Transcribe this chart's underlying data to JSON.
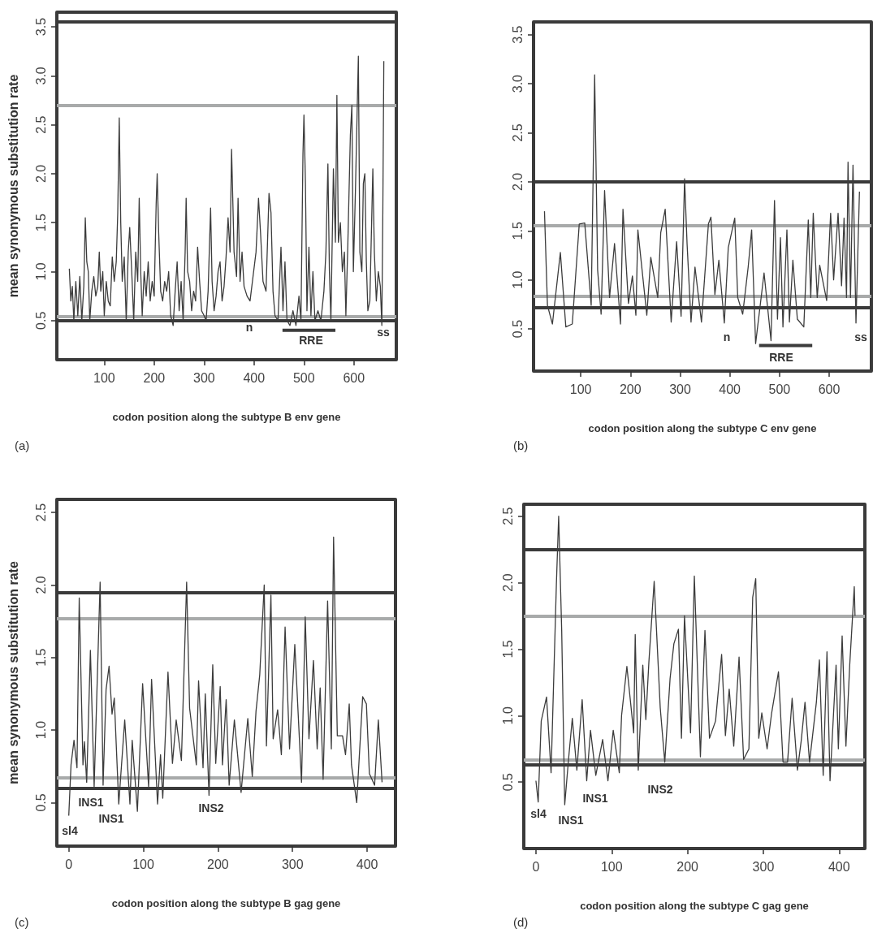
{
  "chart_data": [
    {
      "type": "line",
      "xlabel": "codon position along the subtype B env gene",
      "ylabel": "mean synonymous substitution rate",
      "xlim": [
        5,
        685
      ],
      "ylim": [
        0.1,
        3.65
      ],
      "xticks": [
        100,
        200,
        300,
        400,
        500,
        600
      ],
      "yticks": [
        0.5,
        {
          "value": 1,
          "label": "1.0"
        },
        1.5,
        {
          "value": 2,
          "label": "2.0"
        },
        2.5,
        {
          "value": 3,
          "label": "3.0"
        },
        3.5
      ],
      "marker": "none",
      "line_style": "solid",
      "series": [
        {
          "color": "#3c3c3c",
          "x": [
            30,
            33,
            36,
            39,
            43,
            47,
            51,
            55,
            59,
            62,
            65,
            68,
            71,
            75,
            79,
            83,
            87,
            90,
            93,
            97,
            100,
            104,
            108,
            112,
            116,
            120,
            124,
            127,
            130,
            133,
            136,
            140,
            144,
            148,
            151,
            155,
            159,
            163,
            167,
            170,
            173,
            176,
            180,
            184,
            188,
            192,
            196,
            200,
            204,
            206,
            209,
            213,
            217,
            221,
            225,
            229,
            233,
            238,
            242,
            246,
            250,
            254,
            258,
            262,
            264,
            267,
            271,
            275,
            279,
            283,
            287,
            291,
            295,
            300,
            304,
            308,
            313,
            316,
            320,
            324,
            328,
            332,
            336,
            340,
            344,
            348,
            352,
            355,
            360,
            365,
            368,
            372,
            376,
            380,
            386,
            392,
            398,
            404,
            409,
            413,
            418,
            424,
            430,
            434,
            438,
            442,
            448,
            454,
            458,
            462,
            466,
            472,
            478,
            484,
            490,
            494,
            498,
            500,
            503,
            506,
            510,
            514,
            518,
            522,
            528,
            534,
            540,
            544,
            548,
            551,
            554,
            559,
            563,
            566,
            569,
            573,
            577,
            581,
            584,
            588,
            593,
            596,
            599,
            603,
            609,
            612,
            616,
            619,
            622,
            625,
            628,
            632,
            638,
            641,
            645,
            649,
            653,
            656,
            658,
            660
          ],
          "values": [
            1.03,
            0.7,
            0.85,
            0.5,
            0.9,
            0.55,
            0.95,
            0.5,
            0.85,
            1.55,
            1.1,
            1.0,
            0.5,
            0.8,
            0.95,
            0.75,
            0.85,
            1.2,
            0.8,
            1.0,
            0.55,
            0.9,
            0.7,
            0.65,
            1.15,
            0.9,
            1.1,
            1.6,
            2.57,
            1.5,
            0.9,
            1.15,
            0.5,
            1.2,
            1.45,
            1.0,
            0.5,
            1.2,
            0.9,
            1.75,
            1.0,
            0.55,
            1.0,
            0.75,
            1.1,
            0.7,
            0.9,
            0.75,
            1.7,
            2.0,
            1.4,
            0.8,
            0.7,
            0.9,
            0.8,
            1.0,
            0.55,
            0.45,
            0.8,
            1.1,
            0.6,
            0.9,
            0.5,
            1.2,
            1.75,
            1.0,
            0.9,
            0.6,
            0.8,
            0.7,
            1.25,
            0.9,
            0.6,
            0.55,
            0.5,
            0.8,
            1.65,
            0.9,
            0.6,
            0.75,
            1.0,
            1.1,
            0.7,
            0.85,
            1.15,
            1.55,
            1.2,
            2.25,
            1.2,
            0.95,
            1.75,
            0.9,
            1.2,
            0.85,
            0.75,
            0.7,
            0.95,
            1.2,
            1.75,
            1.4,
            0.9,
            0.8,
            1.8,
            1.6,
            0.8,
            0.55,
            0.5,
            1.25,
            0.6,
            1.1,
            0.5,
            0.45,
            0.6,
            0.45,
            0.75,
            0.5,
            2.2,
            2.6,
            1.9,
            0.6,
            1.25,
            0.55,
            1.0,
            0.5,
            0.6,
            0.5,
            0.8,
            1.2,
            2.1,
            1.0,
            0.5,
            2.05,
            1.3,
            2.8,
            1.3,
            1.5,
            1.0,
            1.2,
            0.55,
            1.3,
            2.4,
            2.7,
            1.0,
            1.8,
            3.2,
            1.2,
            1.0,
            1.9,
            2.0,
            1.1,
            0.6,
            0.7,
            2.05,
            1.2,
            0.7,
            1.0,
            0.85,
            0.45,
            1.6,
            3.15
          ]
        },
        {
          "color": "#3c3c3c",
          "x": [
            457,
            563
          ],
          "values": [
            0.4,
            0.4
          ]
        }
      ],
      "ref_lines": [
        {
          "axis": "y",
          "value": 3.55,
          "color": "#3a3a3a"
        },
        {
          "axis": "y",
          "value": 2.7,
          "color": "#a8aaaa"
        },
        {
          "axis": "y",
          "value": 0.54,
          "color": "#a8aaaa"
        },
        {
          "axis": "y",
          "value": 0.5,
          "color": "#3a3a3a"
        }
      ],
      "annotations": [
        "n",
        "RRE",
        "ss",
        "(a)"
      ]
    },
    {
      "type": "line",
      "xlabel": "codon position along the subtype C env gene",
      "xlim": [
        5,
        685
      ],
      "ylim": [
        0.07,
        3.63
      ],
      "xticks": [
        100,
        200,
        300,
        400,
        500,
        600
      ],
      "yticks": [
        0.5,
        {
          "value": 1,
          "label": "1.0"
        },
        1.5,
        {
          "value": 2,
          "label": "2.0"
        },
        2.5,
        {
          "value": 3,
          "label": "3.0"
        },
        3.5
      ],
      "marker": "none",
      "line_style": "solid",
      "series": [
        {
          "color": "#3c3c3c",
          "x": [
            27,
            33,
            43,
            59,
            70,
            83,
            97,
            108,
            121,
            128,
            134,
            141,
            148,
            158,
            168,
            180,
            185,
            196,
            204,
            211,
            215,
            233,
            241,
            255,
            261,
            270,
            282,
            293,
            302,
            309,
            314,
            322,
            330,
            343,
            357,
            362,
            370,
            378,
            389,
            397,
            410,
            416,
            426,
            437,
            444,
            452,
            469,
            483,
            490,
            496,
            502,
            507,
            515,
            520,
            527,
            536,
            549,
            558,
            563,
            568,
            576,
            581,
            595,
            603,
            609,
            618,
            625,
            630,
            635,
            638,
            643,
            648,
            654,
            661
          ],
          "values": [
            1.7,
            0.74,
            0.55,
            1.28,
            0.52,
            0.55,
            1.57,
            1.58,
            0.74,
            3.09,
            1.1,
            0.65,
            1.91,
            0.82,
            1.37,
            0.55,
            1.72,
            0.76,
            1.04,
            0.64,
            1.51,
            0.64,
            1.23,
            0.82,
            1.48,
            1.72,
            0.57,
            1.39,
            0.63,
            2.03,
            1.37,
            0.57,
            1.13,
            0.57,
            1.57,
            1.64,
            0.85,
            1.2,
            0.56,
            1.33,
            1.63,
            0.82,
            0.65,
            1.13,
            1.51,
            0.35,
            1.07,
            0.38,
            1.81,
            0.6,
            1.43,
            0.52,
            1.51,
            0.57,
            1.2,
            0.6,
            0.52,
            1.61,
            0.82,
            1.68,
            0.82,
            1.15,
            0.79,
            1.68,
            1.0,
            1.68,
            0.94,
            1.63,
            0.82,
            2.2,
            0.82,
            2.17,
            0.56,
            1.9
          ]
        },
        {
          "color": "#3c3c3c",
          "x": [
            459,
            566
          ],
          "values": [
            0.33,
            0.33
          ]
        }
      ],
      "ref_lines": [
        {
          "axis": "y",
          "value": 2.0,
          "color": "#3a3a3a"
        },
        {
          "axis": "y",
          "value": 1.55,
          "color": "#a8aaaa"
        },
        {
          "axis": "y",
          "value": 0.83,
          "color": "#a8aaaa"
        },
        {
          "axis": "y",
          "value": 0.72,
          "color": "#3a3a3a"
        }
      ],
      "annotations": [
        "n",
        "RRE",
        "ss",
        "(b)"
      ]
    },
    {
      "type": "line",
      "xlabel": "codon position along the subtype B gag gene",
      "ylabel": "mean synonymous substitution rate",
      "xlim": [
        -16,
        438
      ],
      "ylim": [
        0.2,
        2.59
      ],
      "xticks": [
        0,
        100,
        200,
        300,
        400
      ],
      "yticks": [
        0.5,
        {
          "value": 1,
          "label": "1.0"
        },
        1.5,
        {
          "value": 2,
          "label": "2.0"
        },
        2.5
      ],
      "marker": "none",
      "line_style": "solid",
      "series": [
        {
          "color": "#3c3c3c",
          "x": [
            0,
            3,
            7,
            11,
            14,
            19,
            21,
            24,
            29,
            34,
            42,
            46,
            50,
            54,
            58,
            61,
            67,
            75,
            82,
            85,
            92,
            99,
            107,
            111,
            119,
            123,
            126,
            133,
            139,
            144,
            151,
            158,
            162,
            171,
            174,
            180,
            183,
            188,
            193,
            197,
            203,
            206,
            211,
            215,
            222,
            231,
            240,
            246,
            251,
            256,
            262,
            265,
            271,
            274,
            280,
            285,
            290,
            296,
            303,
            312,
            317,
            322,
            328,
            333,
            337,
            341,
            347,
            352,
            355,
            360,
            367,
            371,
            376,
            379,
            386,
            394,
            399,
            403,
            410,
            415,
            420
          ],
          "values": [
            0.41,
            0.76,
            0.93,
            0.74,
            1.91,
            0.76,
            0.92,
            0.64,
            1.55,
            0.61,
            2.02,
            0.62,
            1.28,
            1.44,
            1.11,
            1.22,
            0.49,
            1.07,
            0.49,
            0.93,
            0.44,
            1.32,
            0.61,
            1.35,
            0.49,
            0.83,
            0.53,
            1.4,
            0.77,
            1.07,
            0.79,
            2.02,
            1.15,
            0.76,
            1.34,
            0.74,
            1.25,
            0.55,
            1.45,
            0.77,
            1.3,
            0.76,
            1.21,
            0.62,
            1.07,
            0.57,
            1.08,
            0.68,
            1.13,
            1.38,
            2.0,
            0.89,
            1.93,
            0.94,
            1.14,
            0.83,
            1.71,
            0.87,
            1.59,
            0.64,
            1.78,
            0.94,
            1.48,
            0.87,
            1.29,
            0.66,
            1.89,
            0.87,
            2.33,
            0.96,
            0.96,
            0.83,
            1.18,
            0.76,
            0.5,
            1.23,
            1.18,
            0.7,
            0.62,
            1.07,
            0.64
          ]
        }
      ],
      "ref_lines": [
        {
          "axis": "y",
          "value": 1.95,
          "color": "#3a3a3a"
        },
        {
          "axis": "y",
          "value": 1.77,
          "color": "#a8aaaa"
        },
        {
          "axis": "y",
          "value": 0.67,
          "color": "#a8aaaa"
        },
        {
          "axis": "y",
          "value": 0.6,
          "color": "#3a3a3a"
        }
      ],
      "annotations": [
        "sl4",
        "INS1",
        "INS1",
        "INS2",
        "(c)"
      ]
    },
    {
      "type": "line",
      "xlabel": "codon position along the subtype C gag gene",
      "xlim": [
        -16,
        434
      ],
      "ylim": [
        0,
        2.59
      ],
      "xticks": [
        0,
        100,
        200,
        300,
        400
      ],
      "yticks": [
        0.5,
        {
          "value": 1,
          "label": "1.0"
        },
        1.5,
        {
          "value": 2,
          "label": "2.0"
        },
        2.5
      ],
      "marker": "none",
      "line_style": "solid",
      "series": [
        {
          "color": "#3c3c3c",
          "x": [
            0,
            3,
            7,
            14,
            20,
            27,
            30,
            34,
            38,
            43,
            48,
            54,
            61,
            67,
            72,
            79,
            88,
            95,
            102,
            110,
            113,
            120,
            129,
            131,
            135,
            141,
            145,
            149,
            156,
            164,
            170,
            177,
            182,
            188,
            192,
            196,
            204,
            209,
            217,
            223,
            229,
            237,
            245,
            250,
            255,
            261,
            268,
            274,
            281,
            286,
            290,
            294,
            298,
            305,
            311,
            320,
            326,
            332,
            338,
            345,
            350,
            355,
            361,
            370,
            374,
            379,
            384,
            388,
            396,
            399,
            404,
            409,
            414,
            420,
            421
          ],
          "values": [
            0.51,
            0.35,
            0.96,
            1.14,
            0.57,
            1.99,
            2.5,
            1.64,
            0.33,
            0.67,
            0.98,
            0.59,
            1.12,
            0.51,
            0.89,
            0.55,
            0.82,
            0.51,
            0.89,
            0.57,
            1.0,
            1.37,
            0.87,
            1.61,
            0.59,
            1.38,
            0.97,
            1.4,
            2.01,
            1.06,
            0.65,
            1.28,
            1.54,
            1.65,
            0.83,
            1.75,
            0.87,
            2.05,
            0.69,
            1.64,
            0.83,
            0.96,
            1.46,
            0.85,
            1.2,
            0.77,
            1.44,
            0.67,
            0.75,
            1.89,
            2.03,
            0.83,
            1.02,
            0.75,
            1.02,
            1.33,
            0.65,
            0.65,
            1.13,
            0.59,
            0.81,
            1.1,
            0.65,
            1.1,
            1.42,
            0.55,
            1.48,
            0.51,
            1.38,
            0.75,
            1.6,
            0.77,
            1.38,
            1.97,
            1.75
          ]
        }
      ],
      "ref_lines": [
        {
          "axis": "y",
          "value": 2.25,
          "color": "#3a3a3a"
        },
        {
          "axis": "y",
          "value": 1.75,
          "color": "#a8aaaa"
        },
        {
          "axis": "y",
          "value": 0.67,
          "color": "#a8aaaa"
        },
        {
          "axis": "y",
          "value": 0.63,
          "color": "#3a3a3a"
        }
      ],
      "annotations": [
        "sl4",
        "INS1",
        "INS1",
        "INS2",
        "(d)"
      ]
    }
  ]
}
